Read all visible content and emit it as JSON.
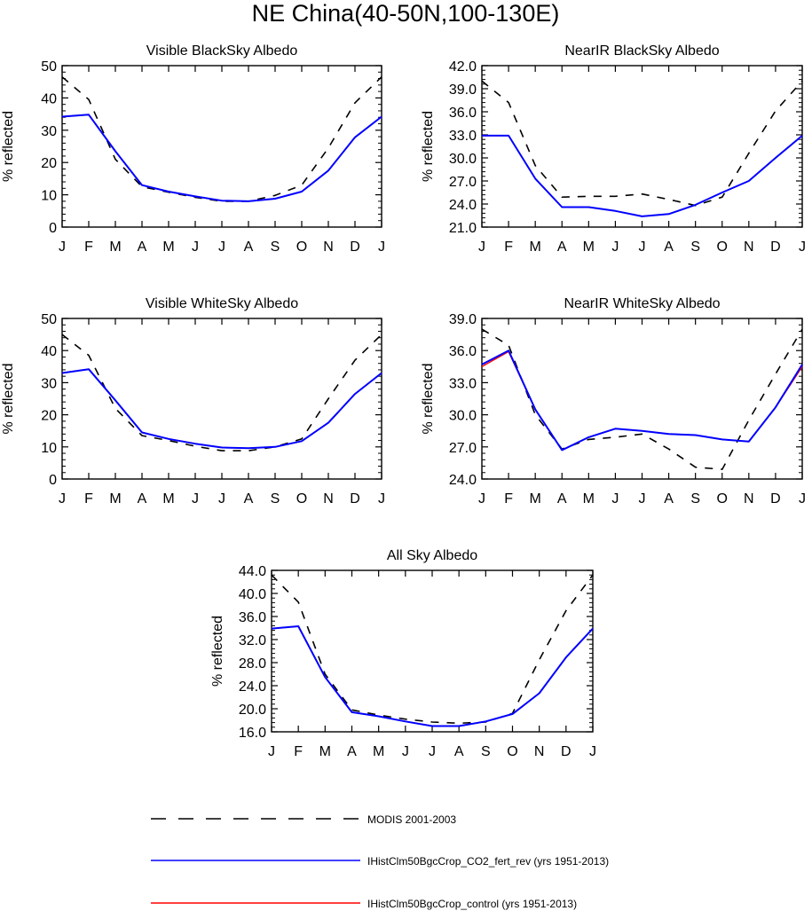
{
  "figure_title": "NE China(40-50N,100-130E)",
  "months": [
    "J",
    "F",
    "M",
    "A",
    "M",
    "J",
    "J",
    "A",
    "S",
    "O",
    "N",
    "D",
    "J"
  ],
  "legend": [
    {
      "label": "MODIS 2001-2003",
      "color": "#000000",
      "dash": true
    },
    {
      "label": "IHistClm50BgcCrop_CO2_fert_rev (yrs 1951-2013)",
      "color": "#0000ff",
      "dash": false
    },
    {
      "label": "IHistClm50BgcCrop_control (yrs 1951-2013)",
      "color": "#ff0000",
      "dash": false
    }
  ],
  "chart_data": [
    {
      "type": "line",
      "title": "Visible BlackSky Albedo",
      "ylabel": "% reflected",
      "ylim": [
        0,
        50
      ],
      "yticks": [
        "0",
        "10",
        "20",
        "30",
        "40",
        "50"
      ],
      "x": [
        "J",
        "F",
        "M",
        "A",
        "M",
        "J",
        "J",
        "A",
        "S",
        "O",
        "N",
        "D",
        "J"
      ],
      "series": [
        {
          "name": "MODIS 2001-2003",
          "values": [
            46.5,
            39.5,
            21.0,
            12.5,
            10.8,
            9.2,
            8.0,
            8.0,
            9.8,
            13.0,
            24.5,
            38.5,
            46.5
          ]
        },
        {
          "name": "IHistClm50BgcCrop_CO2_fert_rev (yrs 1951-2013)",
          "values": [
            34.2,
            34.8,
            23.5,
            13.0,
            11.0,
            9.5,
            8.2,
            8.0,
            8.8,
            11.0,
            17.5,
            27.8,
            34.2
          ]
        },
        {
          "name": "IHistClm50BgcCrop_control (yrs 1951-2013)",
          "values": [
            34.2,
            34.8,
            23.5,
            13.0,
            11.0,
            9.5,
            8.2,
            8.0,
            8.8,
            11.0,
            17.5,
            27.8,
            34.2
          ]
        }
      ]
    },
    {
      "type": "line",
      "title": "NearIR BlackSky Albedo",
      "ylabel": "% reflected",
      "ylim": [
        21,
        42
      ],
      "yticks": [
        "21.0",
        "24.0",
        "27.0",
        "30.0",
        "33.0",
        "36.0",
        "39.0",
        "42.0"
      ],
      "x": [
        "J",
        "F",
        "M",
        "A",
        "M",
        "J",
        "J",
        "A",
        "S",
        "O",
        "N",
        "D",
        "J"
      ],
      "series": [
        {
          "name": "MODIS 2001-2003",
          "values": [
            40.0,
            37.2,
            29.0,
            24.9,
            25.0,
            25.0,
            25.3,
            24.6,
            23.8,
            24.9,
            30.6,
            36.1,
            40.0
          ]
        },
        {
          "name": "IHistClm50BgcCrop_CO2_fert_rev (yrs 1951-2013)",
          "values": [
            32.9,
            32.9,
            27.3,
            23.6,
            23.6,
            23.1,
            22.4,
            22.7,
            23.9,
            25.5,
            27.0,
            30.0,
            32.9
          ]
        },
        {
          "name": "IHistClm50BgcCrop_control (yrs 1951-2013)",
          "values": [
            32.9,
            32.9,
            27.3,
            23.6,
            23.6,
            23.1,
            22.4,
            22.7,
            23.9,
            25.5,
            27.0,
            30.0,
            32.9
          ]
        }
      ]
    },
    {
      "type": "line",
      "title": "Visible WhiteSky Albedo",
      "ylabel": "% reflected",
      "ylim": [
        0,
        50
      ],
      "yticks": [
        "0",
        "10",
        "20",
        "30",
        "40",
        "50"
      ],
      "x": [
        "J",
        "F",
        "M",
        "A",
        "M",
        "J",
        "J",
        "A",
        "S",
        "O",
        "N",
        "D",
        "J"
      ],
      "series": [
        {
          "name": "MODIS 2001-2003",
          "values": [
            45.0,
            38.5,
            22.0,
            13.5,
            12.0,
            10.2,
            8.8,
            8.8,
            10.0,
            12.5,
            25.0,
            37.0,
            45.0
          ]
        },
        {
          "name": "IHistClm50BgcCrop_CO2_fert_rev (yrs 1951-2013)",
          "values": [
            33.0,
            34.2,
            24.5,
            14.5,
            12.5,
            11.0,
            9.8,
            9.6,
            10.0,
            11.8,
            17.5,
            26.5,
            33.0
          ]
        },
        {
          "name": "IHistClm50BgcCrop_control (yrs 1951-2013)",
          "values": [
            33.0,
            34.2,
            24.5,
            14.5,
            12.5,
            11.0,
            9.8,
            9.6,
            10.0,
            11.8,
            17.5,
            26.5,
            33.0
          ]
        }
      ]
    },
    {
      "type": "line",
      "title": "NearIR WhiteSky Albedo",
      "ylabel": "% reflected",
      "ylim": [
        24,
        39
      ],
      "yticks": [
        "24.0",
        "27.0",
        "30.0",
        "33.0",
        "36.0",
        "39.0"
      ],
      "x": [
        "J",
        "F",
        "M",
        "A",
        "M",
        "J",
        "J",
        "A",
        "S",
        "O",
        "N",
        "D",
        "J"
      ],
      "series": [
        {
          "name": "MODIS 2001-2003",
          "values": [
            38.0,
            36.5,
            30.0,
            26.8,
            27.7,
            27.9,
            28.2,
            26.8,
            25.1,
            24.9,
            29.5,
            33.8,
            38.0
          ]
        },
        {
          "name": "IHistClm50BgcCrop_CO2_fert_rev (yrs 1951-2013)",
          "values": [
            34.7,
            36.0,
            30.5,
            26.7,
            27.9,
            28.7,
            28.5,
            28.2,
            28.1,
            27.7,
            27.5,
            30.7,
            34.7
          ]
        },
        {
          "name": "IHistClm50BgcCrop_control (yrs 1951-2013)",
          "values": [
            34.5,
            35.9,
            30.5,
            26.7,
            27.9,
            28.7,
            28.5,
            28.2,
            28.1,
            27.7,
            27.5,
            30.7,
            34.5
          ]
        }
      ]
    },
    {
      "type": "line",
      "title": "All Sky Albedo",
      "ylabel": "% reflected",
      "ylim": [
        16,
        44
      ],
      "yticks": [
        "16.0",
        "20.0",
        "24.0",
        "28.0",
        "32.0",
        "36.0",
        "40.0",
        "44.0"
      ],
      "x": [
        "J",
        "F",
        "M",
        "A",
        "M",
        "J",
        "J",
        "A",
        "S",
        "O",
        "N",
        "D",
        "J"
      ],
      "series": [
        {
          "name": "MODIS 2001-2003",
          "values": [
            43.2,
            38.5,
            26.0,
            19.8,
            18.9,
            18.2,
            17.7,
            17.5,
            17.7,
            19.2,
            28.5,
            37.0,
            43.2
          ]
        },
        {
          "name": "IHistClm50BgcCrop_CO2_fert_rev (yrs 1951-2013)",
          "values": [
            33.9,
            34.3,
            25.5,
            19.4,
            18.7,
            17.8,
            17.0,
            17.0,
            17.8,
            19.1,
            22.7,
            28.9,
            33.9
          ]
        },
        {
          "name": "IHistClm50BgcCrop_control (yrs 1951-2013)",
          "values": [
            33.9,
            34.3,
            25.5,
            19.4,
            18.7,
            17.8,
            17.0,
            17.0,
            17.8,
            19.1,
            22.7,
            28.9,
            33.9
          ]
        }
      ]
    }
  ]
}
